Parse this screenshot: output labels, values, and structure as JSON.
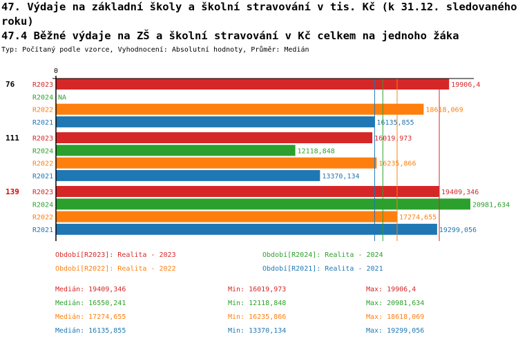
{
  "title_line1": "47. Výdaje na základní školy a školní stravování v tis. Kč (k 31.12. sledovaného",
  "title_line2": "roku)",
  "subtitle": "47.4 Běžné výdaje na ZŠ a školní stravování v Kč celkem na jednoho žáka",
  "info": "Typ: Počítaný podle vzorce, Vyhodnocení: Absolutní hodnoty, Průměr: Medián",
  "chart_data": {
    "type": "bar",
    "orientation": "horizontal",
    "axis_zero_label": "0",
    "xlim": [
      0,
      20981.634
    ],
    "groups": [
      {
        "label": "76",
        "highlight": false
      },
      {
        "label": "111",
        "highlight": false
      },
      {
        "label": "139",
        "highlight": true
      }
    ],
    "series": [
      {
        "name": "R2023",
        "color": "#d62728",
        "values": [
          19906.4,
          16019.973,
          19409.346
        ],
        "labels": [
          "19906,4",
          "16019,973",
          "19409,346"
        ]
      },
      {
        "name": "R2024",
        "color": "#2ca02c",
        "values": [
          null,
          12118.848,
          20981.634
        ],
        "labels": [
          "NA",
          "12118,848",
          "20981,634"
        ]
      },
      {
        "name": "R2022",
        "color": "#ff7f0e",
        "values": [
          18618.069,
          16235.866,
          17274.655
        ],
        "labels": [
          "18618,069",
          "16235,866",
          "17274,655"
        ]
      },
      {
        "name": "R2021",
        "color": "#1f77b4",
        "values": [
          16135.855,
          13370.134,
          19299.056
        ],
        "labels": [
          "16135,855",
          "13370,134",
          "19299,056"
        ]
      }
    ],
    "median_lines": {
      "R2023": 19409.346,
      "R2024": 16550.241,
      "R2022": 17274.655,
      "R2021": 16135.855
    },
    "highlight_color": "#e00000"
  },
  "legend": [
    {
      "text": "Období[R2023]: Realita - 2023",
      "color": "#d62728"
    },
    {
      "text": "Období[R2024]: Realita - 2024",
      "color": "#2ca02c"
    },
    {
      "text": "Období[R2022]: Realita - 2022",
      "color": "#ff7f0e"
    },
    {
      "text": "Období[R2021]: Realita - 2021",
      "color": "#1f77b4"
    }
  ],
  "stats": [
    {
      "color": "#d62728",
      "median": "Medián: 19409,346",
      "min": "Min: 16019,973",
      "max": "Max: 19906,4"
    },
    {
      "color": "#2ca02c",
      "median": "Medián: 16550,241",
      "min": "Min: 12118,848",
      "max": "Max: 20981,634"
    },
    {
      "color": "#ff7f0e",
      "median": "Medián: 17274,655",
      "min": "Min: 16235,866",
      "max": "Max: 18618,069"
    },
    {
      "color": "#1f77b4",
      "median": "Medián: 16135,855",
      "min": "Min: 13370,134",
      "max": "Max: 19299,056"
    }
  ]
}
